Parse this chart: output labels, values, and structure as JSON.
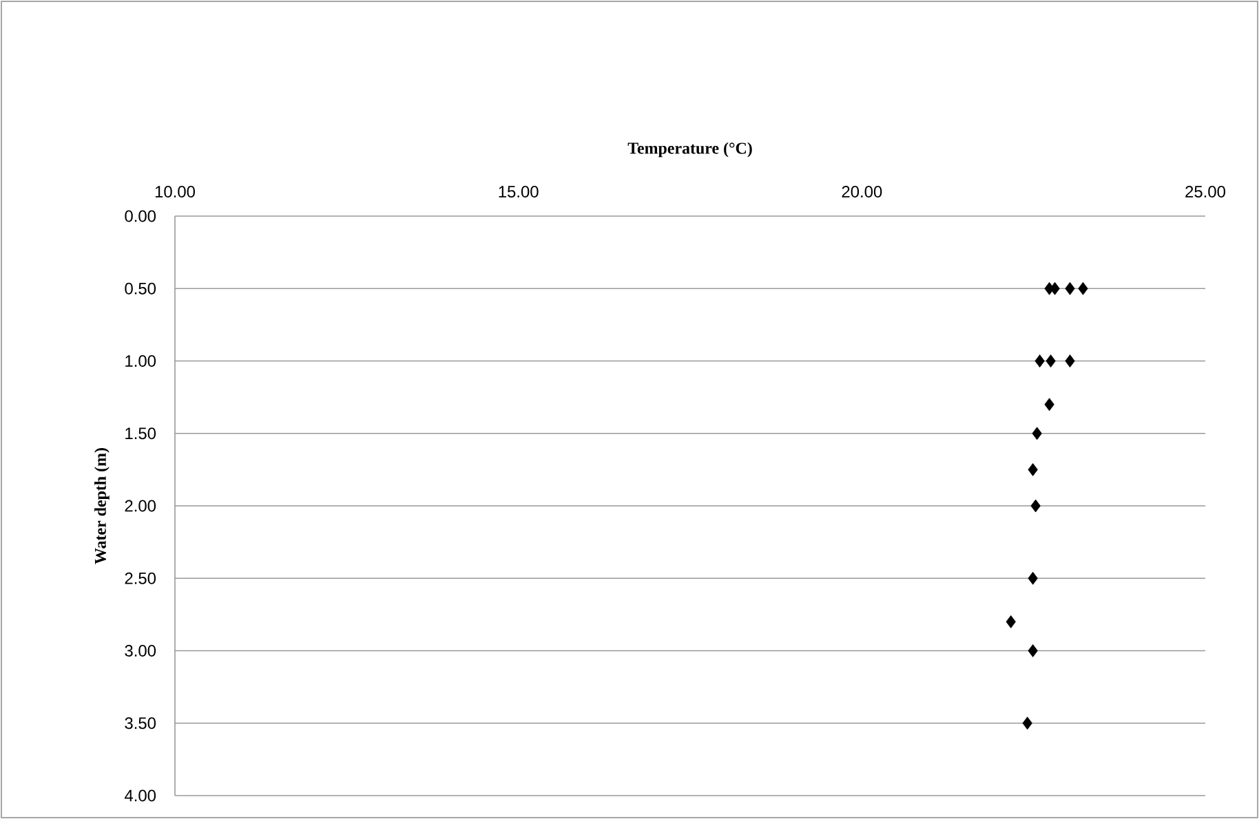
{
  "chart_data": {
    "type": "scatter",
    "xlabel": "Temperature (°C)",
    "ylabel": "Water depth (m)",
    "x": [
      22.73,
      22.81,
      23.03,
      23.22,
      22.59,
      22.75,
      23.03,
      22.73,
      22.55,
      22.49,
      22.53,
      22.49,
      22.17,
      22.49,
      22.41
    ],
    "values": [
      0.5,
      0.5,
      0.5,
      0.5,
      1.0,
      1.0,
      1.0,
      1.3,
      1.5,
      1.75,
      2.0,
      2.5,
      2.8,
      3.0,
      3.5
    ],
    "color": "#000000",
    "marker": "diamond",
    "grid": "y",
    "xlim": [
      10,
      25
    ],
    "ylim": [
      4,
      0
    ],
    "xticks": [
      {
        "value": 10,
        "label": "10.00"
      },
      {
        "value": 15,
        "label": "15.00"
      },
      {
        "value": 20,
        "label": "20.00"
      },
      {
        "value": 25,
        "label": "25.00"
      }
    ],
    "yticks": [
      {
        "value": 0,
        "label": "0.00"
      },
      {
        "value": 0.5,
        "label": "0.50"
      },
      {
        "value": 1,
        "label": "1.00"
      },
      {
        "value": 1.5,
        "label": "1.50"
      },
      {
        "value": 2,
        "label": "2.00"
      },
      {
        "value": 2.5,
        "label": "2.50"
      },
      {
        "value": 3,
        "label": "3.00"
      },
      {
        "value": 3.5,
        "label": "3.50"
      },
      {
        "value": 4,
        "label": "4.00"
      }
    ]
  }
}
